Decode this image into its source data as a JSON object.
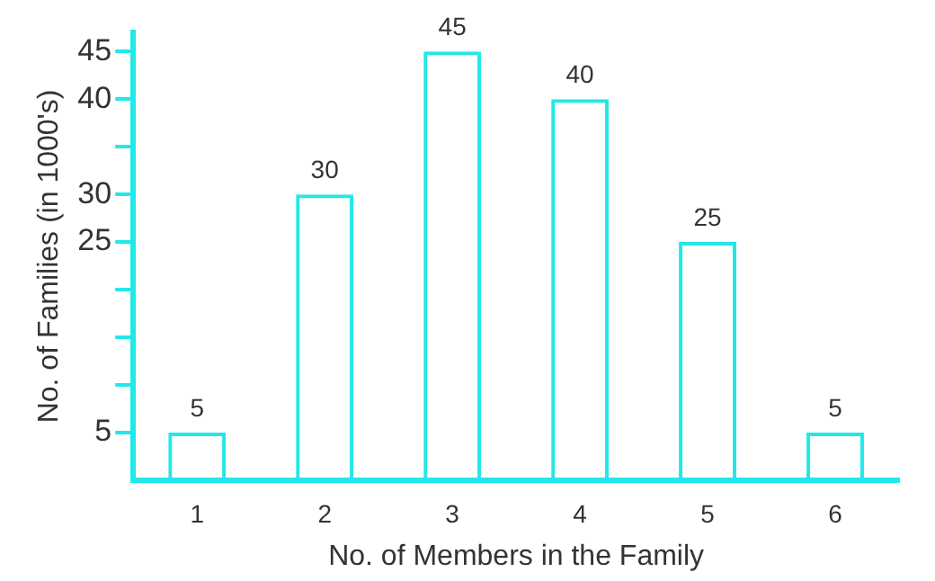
{
  "chart_data": {
    "type": "bar",
    "xlabel": "No. of Members in the Family",
    "ylabel": "No. of Families (in 1000's)",
    "categories": [
      "1",
      "2",
      "3",
      "4",
      "5",
      "6"
    ],
    "values": [
      5,
      30,
      45,
      40,
      25,
      5
    ],
    "color": "#22e8e8",
    "ylim": [
      0,
      47
    ],
    "yticks": [
      5,
      {
        "value": 10,
        "label": null
      },
      {
        "value": 15,
        "label": null
      },
      {
        "value": 20,
        "label": null
      },
      25,
      30,
      {
        "value": 35,
        "label": null
      },
      40,
      45
    ],
    "data_labels": true,
    "grid": false,
    "legend": false
  }
}
